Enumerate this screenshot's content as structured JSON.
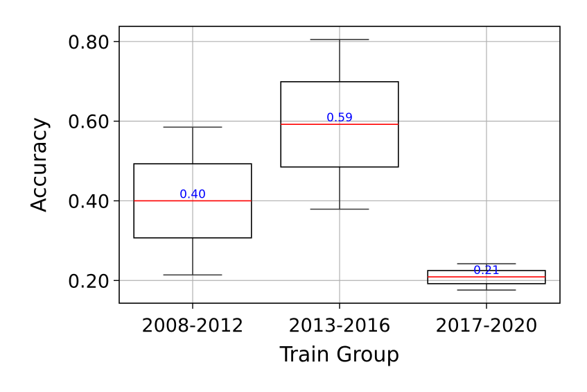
{
  "chart_data": {
    "type": "box",
    "title": "",
    "xlabel": "Train Group",
    "ylabel": "Accuracy",
    "ylim": [
      0.143,
      0.838
    ],
    "yticks": [
      "0.20",
      "0.40",
      "0.60",
      "0.80"
    ],
    "ytick_values": [
      0.2,
      0.4,
      0.6,
      0.8
    ],
    "grid": true,
    "legend": "none",
    "categories": [
      "2008-2012",
      "2013-2016",
      "2017-2020"
    ],
    "boxes": [
      {
        "category": "2008-2012",
        "whisker_low": 0.214,
        "q1": 0.307,
        "median": 0.4,
        "q3": 0.493,
        "whisker_high": 0.585,
        "median_label": "0.40"
      },
      {
        "category": "2013-2016",
        "whisker_low": 0.379,
        "q1": 0.485,
        "median": 0.592,
        "q3": 0.699,
        "whisker_high": 0.805,
        "median_label": "0.59"
      },
      {
        "category": "2017-2020",
        "whisker_low": 0.176,
        "q1": 0.192,
        "median": 0.209,
        "q3": 0.225,
        "whisker_high": 0.242,
        "median_label": "0.21"
      }
    ],
    "colors": {
      "box_edge": "#000000",
      "whisker": "#3a3a3a",
      "median_line": "#ff0000",
      "median_label": "#0000ff",
      "grid": "#b0b0b0"
    }
  }
}
